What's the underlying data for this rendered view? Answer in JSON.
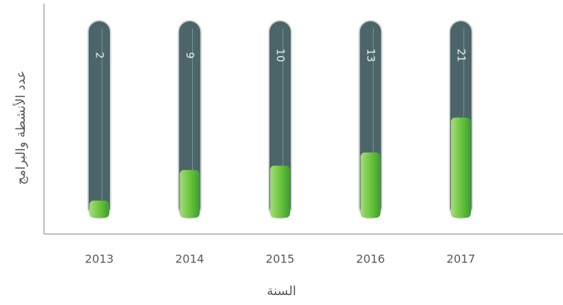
{
  "chart_data": {
    "type": "bar",
    "x_label": "السنة",
    "y_label": "عدد الأنشطة والبرامج",
    "categories": [
      "2013",
      "2014",
      "2015",
      "2016",
      "2017"
    ],
    "values": [
      2,
      9,
      10,
      13,
      21
    ],
    "color": "#5cbf3a",
    "ylim": [
      0,
      45
    ]
  }
}
